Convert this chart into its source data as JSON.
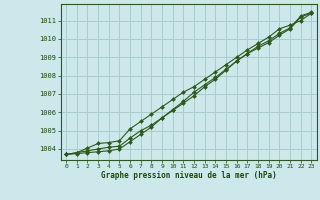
{
  "title": "Graphe pression niveau de la mer (hPa)",
  "background_color": "#cce8ea",
  "grid_color": "#aacccc",
  "line_color": "#2d5a1b",
  "text_color": "#1a4a0a",
  "x_ticks": [
    0,
    1,
    2,
    3,
    4,
    5,
    6,
    7,
    8,
    9,
    10,
    11,
    12,
    13,
    14,
    15,
    16,
    17,
    18,
    19,
    20,
    21,
    22,
    23
  ],
  "y_ticks": [
    1004,
    1005,
    1006,
    1007,
    1008,
    1009,
    1010,
    1011
  ],
  "ylim": [
    1003.4,
    1011.9
  ],
  "xlim": [
    -0.5,
    23.5
  ],
  "series1": [
    1003.7,
    1003.8,
    1003.9,
    1004.0,
    1004.1,
    1004.15,
    1004.6,
    1005.0,
    1005.3,
    1005.7,
    1006.1,
    1006.5,
    1006.9,
    1007.4,
    1007.8,
    1008.3,
    1008.8,
    1009.2,
    1009.5,
    1009.8,
    1010.2,
    1010.55,
    1011.2,
    1011.4
  ],
  "series2": [
    1003.7,
    1003.75,
    1003.8,
    1003.85,
    1003.9,
    1004.0,
    1004.4,
    1004.8,
    1005.2,
    1005.7,
    1006.15,
    1006.6,
    1007.1,
    1007.5,
    1007.9,
    1008.35,
    1008.8,
    1009.2,
    1009.6,
    1009.9,
    1010.3,
    1010.6,
    1011.25,
    1011.45
  ],
  "series3": [
    1003.7,
    1003.8,
    1004.05,
    1004.3,
    1004.35,
    1004.45,
    1005.1,
    1005.5,
    1005.9,
    1006.3,
    1006.7,
    1007.1,
    1007.4,
    1007.8,
    1008.2,
    1008.6,
    1009.0,
    1009.4,
    1009.75,
    1010.1,
    1010.55,
    1010.75,
    1011.0,
    1011.4
  ]
}
